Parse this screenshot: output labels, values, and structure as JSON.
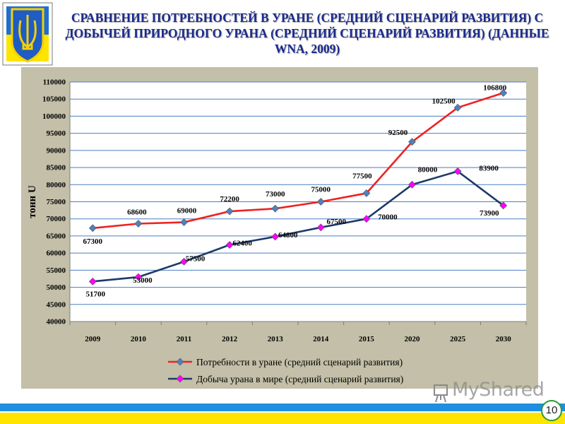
{
  "header": {
    "title": "СРАВНЕНИЕ ПОТРЕБНОСТЕЙ В УРАНЕ (СРЕДНИЙ СЦЕНАРИЙ РАЗВИТИЯ) С ДОБЫЧЕЙ ПРИРОДНОГО УРАНА (СРЕДНИЙ СЦЕНАРИЙ РАЗВИТИЯ) (ДАННЫЕ WNA, 2009)",
    "emblem_icon": "ukraine-trident-emblem"
  },
  "footer": {
    "watermark": "MyShared",
    "page_number": "10",
    "band_colors": [
      "#1f8fe0",
      "#ffe400"
    ]
  },
  "chart_data": {
    "type": "line",
    "title": "",
    "xlabel": "",
    "ylabel": "тонн U",
    "ylim": [
      40000,
      110000
    ],
    "ytick_step": 5000,
    "grid": true,
    "legend_position": "bottom",
    "categories": [
      "2009",
      "2010",
      "2011",
      "2012",
      "2013",
      "2014",
      "2015",
      "2020",
      "2025",
      "2030"
    ],
    "series": [
      {
        "name": "Потребности в уране (средний сценарий развития)",
        "values": [
          67300,
          68600,
          69000,
          72200,
          73000,
          75000,
          77500,
          92500,
          102500,
          106800
        ],
        "labels": [
          "67300",
          "68600",
          "69000",
          "72200",
          "73000",
          "75000",
          "77500",
          "92500",
          "102500",
          "106800"
        ],
        "line_color": "#ee2222",
        "marker_color": "#4f81bd",
        "marker": "diamond"
      },
      {
        "name": "Добыча урана в мире (средний сценарий развития)",
        "values": [
          51700,
          53000,
          57500,
          62400,
          64800,
          67500,
          70000,
          80000,
          83900,
          73900
        ],
        "labels": [
          "51700",
          "53000",
          "57500",
          "62400",
          "64800",
          "67500",
          "70000",
          "80000",
          "83900",
          "73900"
        ],
        "line_color": "#1f3a68",
        "marker_color": "#ff00ff",
        "marker": "diamond"
      }
    ]
  }
}
